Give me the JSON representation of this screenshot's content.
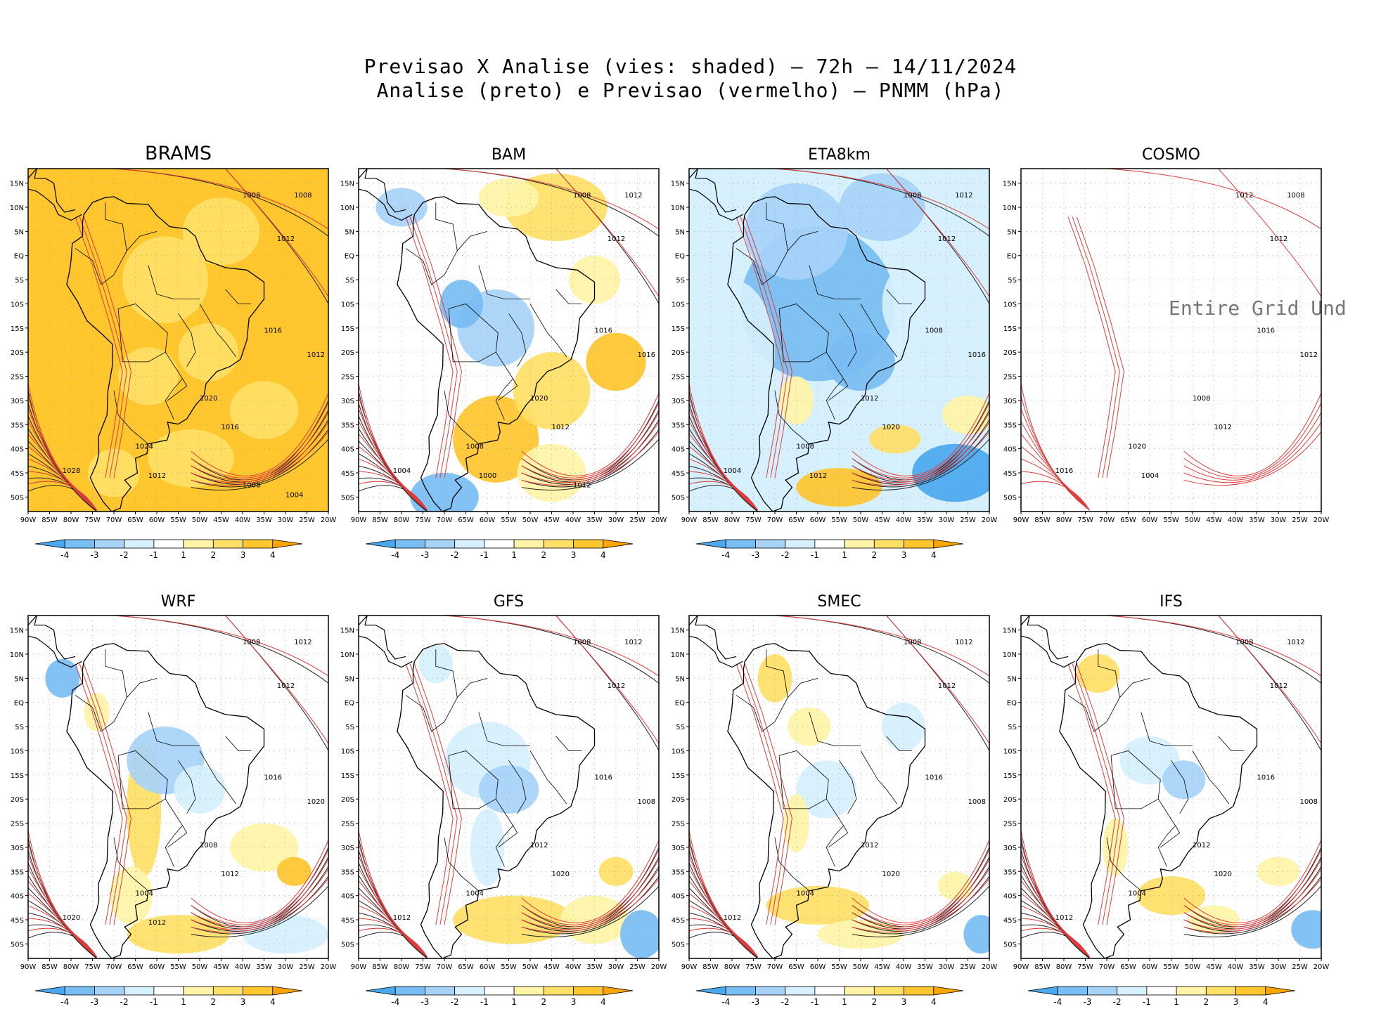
{
  "header": {
    "line1": "Previsao X Analise (vies: shaded) – 72h – 14/11/2024",
    "line2": "Analise (preto) e Previsao (vermelho) – PNMM (hPa)"
  },
  "chart_data": {
    "type": "heatmap",
    "title": "Previsao X Analise (vies: shaded) – 72h – 14/11/2024",
    "subtitle": "Analise (preto) e Previsao (vermelho) – PNMM (hPa)",
    "variable": "PNMM bias (hPa)",
    "x_ticks": [
      "90W",
      "85W",
      "80W",
      "75W",
      "70W",
      "65W",
      "60W",
      "55W",
      "50W",
      "45W",
      "40W",
      "35W",
      "30W",
      "25W",
      "20W"
    ],
    "y_ticks": [
      "15N",
      "10N",
      "5N",
      "EQ",
      "5S",
      "10S",
      "15S",
      "20S",
      "25S",
      "30S",
      "35S",
      "40S",
      "45S",
      "50S"
    ],
    "lon_range": [
      -90,
      -20
    ],
    "lat_range": [
      -53,
      18
    ],
    "colorbar": {
      "labels": [
        "-4",
        "-3",
        "-2",
        "-1",
        "1",
        "2",
        "3",
        "4"
      ],
      "colors": [
        "#4aa8ef",
        "#78bdf3",
        "#a7d3f8",
        "#d6f0fd",
        "#ffffff",
        "#fff4a8",
        "#ffe066",
        "#ffc62e",
        "#ffa500"
      ]
    },
    "contour_colors": {
      "analise": "#000000",
      "previsao": "#e03c3c"
    },
    "panels": [
      {
        "name": "BRAMS",
        "bias": "strong positive (2 to >4) almost everywhere",
        "labels": [
          "1008",
          "1008",
          "1012",
          "1016",
          "1012",
          "1020",
          "1016",
          "1024",
          "1028",
          "1012",
          "1008",
          "1004"
        ],
        "undefined_text": ""
      },
      {
        "name": "BAM",
        "bias": "positive east and south, negative central Brazil",
        "labels": [
          "1008",
          "1012",
          "1012",
          "1016",
          "1016",
          "1020",
          "1012",
          "1008",
          "1004",
          "1000",
          "1012"
        ],
        "undefined_text": ""
      },
      {
        "name": "ETA8km",
        "bias": "negative over most of the domain",
        "labels": [
          "1008",
          "1012",
          "1012",
          "1008",
          "1016",
          "1012",
          "1020",
          "1008",
          "1004",
          "1012"
        ],
        "undefined_text": ""
      },
      {
        "name": "COSMO",
        "bias": "no data",
        "labels": [
          "1012",
          "1008",
          "1012",
          "1016",
          "1012",
          "1008",
          "1012",
          "1020",
          "1016",
          "1004"
        ],
        "undefined_text": "Entire Grid Und"
      },
      {
        "name": "WRF",
        "bias": "mixed, positive along Andes",
        "labels": [
          "1008",
          "1012",
          "1012",
          "1016",
          "1020",
          "1008",
          "1012",
          "1004",
          "1020",
          "1012"
        ],
        "undefined_text": ""
      },
      {
        "name": "GFS",
        "bias": "weak negative interior, positive south Atlantic",
        "labels": [
          "1008",
          "1012",
          "1012",
          "1016",
          "1008",
          "1012",
          "1020",
          "1004",
          "1012"
        ],
        "undefined_text": ""
      },
      {
        "name": "SMEC",
        "bias": "weak mixed",
        "labels": [
          "1008",
          "1012",
          "1012",
          "1016",
          "1008",
          "1012",
          "1020",
          "1004",
          "1012"
        ],
        "undefined_text": ""
      },
      {
        "name": "IFS",
        "bias": "weak mixed, small areas",
        "labels": [
          "1008",
          "1012",
          "1012",
          "1016",
          "1008",
          "1012",
          "1020",
          "1004",
          "1012"
        ],
        "undefined_text": ""
      }
    ]
  }
}
